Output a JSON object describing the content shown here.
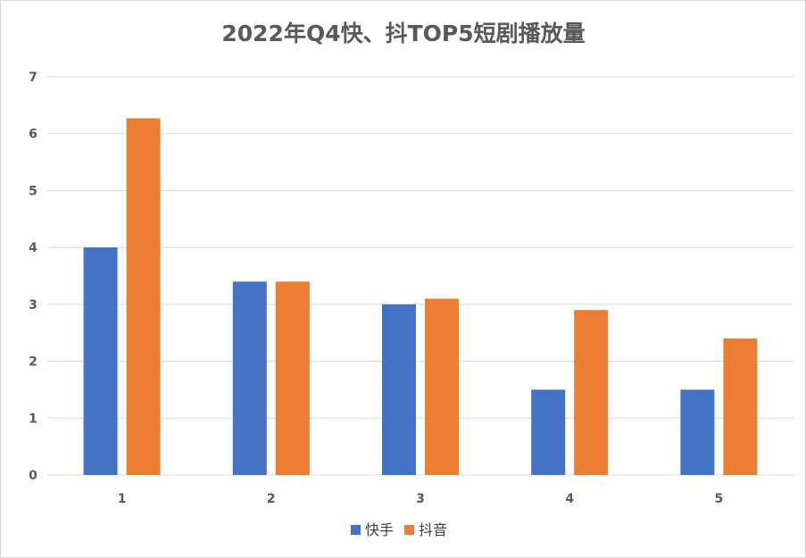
{
  "chart_data": {
    "type": "bar",
    "title": "2022年Q4快、抖TOP5短剧播放量",
    "xlabel": "",
    "ylabel": "",
    "categories": [
      "1",
      "2",
      "3",
      "4",
      "5"
    ],
    "series": [
      {
        "name": "快手",
        "color": "#4472c4",
        "values": [
          4.0,
          3.4,
          3.0,
          1.5,
          1.5
        ]
      },
      {
        "name": "抖音",
        "color": "#ed7d31",
        "values": [
          6.27,
          3.4,
          3.1,
          2.9,
          2.4
        ]
      }
    ],
    "ylim": [
      0,
      7
    ],
    "yticks": [
      "0",
      "1",
      "2",
      "3",
      "4",
      "5",
      "6",
      "7"
    ],
    "grid": true,
    "legend_position": "bottom"
  }
}
